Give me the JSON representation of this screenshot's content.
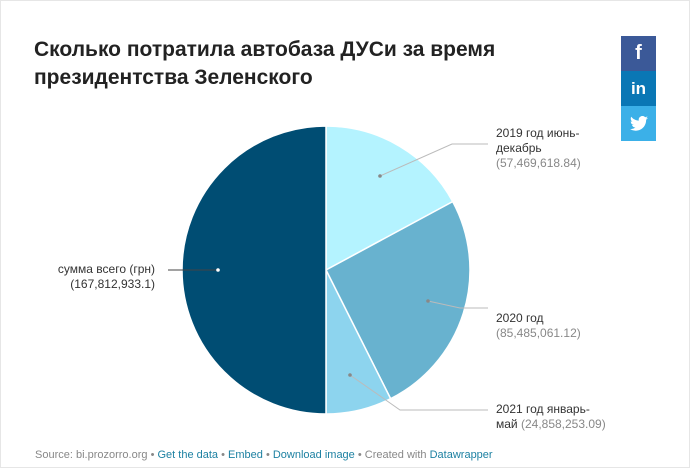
{
  "title": "Сколько потратила автобаза ДУСи за время президентства Зеленского",
  "share": {
    "facebook_glyph": "f",
    "linkedin_glyph": "in",
    "twitter_icon": "twitter-bird-icon"
  },
  "colors": {
    "total": "#004d73",
    "y2019": "#b4f3ff",
    "y2020": "#68b2cf",
    "y2021": "#8dd4ee"
  },
  "chart_data": {
    "type": "pie",
    "title": "Сколько потратила автобаза ДУСи за время президентства Зеленского",
    "slices": [
      {
        "label_lines": [
          "2019 год июнь-",
          "декабрь"
        ],
        "value": 57469618.84,
        "value_text": "(57,469,618.84)"
      },
      {
        "label_lines": [
          "2020 год"
        ],
        "value": 85485061.12,
        "value_text": "(85,485,061.12)"
      },
      {
        "label_lines": [
          "2021 год январь-",
          "май"
        ],
        "value": 24858253.09,
        "value_text": "(24,858,253.09)"
      },
      {
        "label_lines": [
          "сумма всего (грн)"
        ],
        "value": 167812933.1,
        "value_text": "(167,812,933.1)"
      }
    ]
  },
  "footer": {
    "source": "Source: bi.prozorro.org",
    "get_data": "Get the data",
    "embed": "Embed",
    "download": "Download image",
    "created_with": "Created with",
    "datawrapper": "Datawrapper",
    "separator": "•"
  }
}
